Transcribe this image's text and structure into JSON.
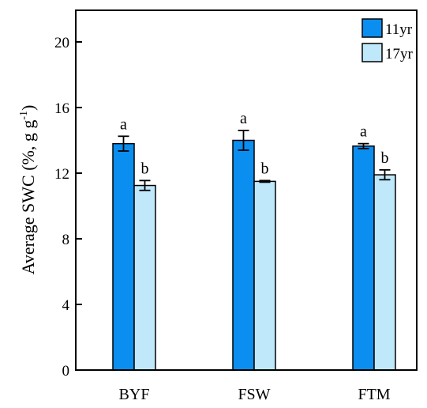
{
  "chart_data": {
    "type": "bar",
    "ylabel": "Average SWC (%, g g",
    "ylabel_sup": "-1",
    "ylabel_close": ")",
    "categories": [
      "BYF",
      "FSW",
      "FTM"
    ],
    "ylim": [
      0,
      22
    ],
    "yticks": [
      0,
      4,
      8,
      12,
      16,
      20
    ],
    "grid": false,
    "legend_position": "top-right",
    "series": [
      {
        "name": "11yr",
        "color": "#0a8ef0",
        "values": [
          13.8,
          14.0,
          13.65
        ],
        "errors": [
          0.45,
          0.6,
          0.15
        ],
        "letters": [
          "a",
          "a",
          "a"
        ]
      },
      {
        "name": "17yr",
        "color": "#bfe8fb",
        "values": [
          11.25,
          11.5,
          11.9
        ],
        "errors": [
          0.3,
          0.05,
          0.3
        ],
        "letters": [
          "b",
          "b",
          "b"
        ]
      }
    ]
  }
}
